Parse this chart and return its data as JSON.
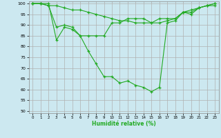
{
  "xlabel": "Humidité relative (%)",
  "background_color": "#cce8f0",
  "grid_color": "#b0b0b0",
  "line_color": "#22aa22",
  "marker_color": "#22aa22",
  "xlim": [
    -0.5,
    23.5
  ],
  "ylim": [
    49,
    101
  ],
  "yticks": [
    50,
    55,
    60,
    65,
    70,
    75,
    80,
    85,
    90,
    95,
    100
  ],
  "xticks": [
    0,
    1,
    2,
    3,
    4,
    5,
    6,
    7,
    8,
    9,
    10,
    11,
    12,
    13,
    14,
    15,
    16,
    17,
    18,
    19,
    20,
    21,
    22,
    23
  ],
  "series": [
    [
      100,
      100,
      100,
      83,
      89,
      88,
      85,
      78,
      72,
      66,
      66,
      63,
      64,
      62,
      61,
      59,
      61,
      91,
      92,
      96,
      95,
      98,
      99,
      100
    ],
    [
      100,
      100,
      99,
      99,
      98,
      97,
      97,
      96,
      95,
      94,
      93,
      92,
      92,
      91,
      91,
      91,
      91,
      92,
      93,
      96,
      97,
      98,
      99,
      99
    ],
    [
      100,
      100,
      99,
      89,
      90,
      89,
      85,
      85,
      85,
      85,
      91,
      91,
      93,
      93,
      93,
      91,
      93,
      93,
      93,
      96,
      96,
      98,
      99,
      100
    ]
  ]
}
